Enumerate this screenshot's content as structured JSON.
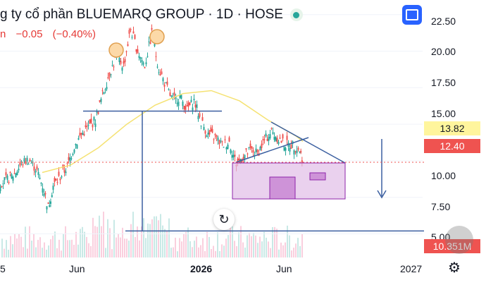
{
  "header": {
    "title": "g ty cổ phần BLUEMARQ GROUP · 1D · HOSE",
    "status_icon": "market-open-dot",
    "change_suffix": "n",
    "change_abs": "−0.05",
    "change_pct": "(−0.40%)"
  },
  "toolbar": {
    "fullscreen_icon": "fullscreen-icon"
  },
  "yaxis": {
    "ticks": [
      "22.50",
      "20.00",
      "17.50",
      "15.00",
      "10.00",
      "7.50",
      "5.00"
    ]
  },
  "price_tags": {
    "ma_value": "13.82",
    "last_price": "12.40",
    "volume": "10.351M"
  },
  "xaxis": {
    "ticks": [
      "5",
      "Jun",
      "2026",
      "Jun",
      "2027"
    ]
  },
  "controls": {
    "reset_icon": "↻",
    "settings_icon": "⚙"
  },
  "colors": {
    "up": "#26a69a",
    "down": "#ef5350",
    "ma_line": "#f5e273",
    "drawing": "#3b5fa0",
    "box_fill": "#e1bee7",
    "box_stroke": "#8e24aa"
  },
  "chart_data": {
    "type": "candlestick",
    "title": "",
    "ylim": [
      4,
      23.5
    ],
    "y_ticks": [
      7.5,
      10,
      12.5,
      15,
      17.5,
      20,
      22.5
    ],
    "x_labels": [
      "5",
      "Jun",
      "2026",
      "Jun",
      "2027"
    ],
    "series": [
      {
        "kind": "price",
        "points": [
          [
            0,
            11.0
          ],
          [
            10,
            11.2
          ],
          [
            20,
            11.6
          ],
          [
            30,
            12.3
          ],
          [
            40,
            12.6
          ],
          [
            50,
            12.0
          ],
          [
            60,
            10.8
          ],
          [
            68,
            9.3
          ],
          [
            75,
            10.8
          ],
          [
            85,
            11.4
          ],
          [
            95,
            12.1
          ],
          [
            105,
            13.5
          ],
          [
            115,
            14.3
          ],
          [
            125,
            14.8
          ],
          [
            135,
            15.3
          ],
          [
            145,
            17.0
          ],
          [
            155,
            18.5
          ],
          [
            165,
            19.6
          ],
          [
            175,
            19.0
          ],
          [
            185,
            21.5
          ],
          [
            195,
            20.0
          ],
          [
            205,
            19.0
          ],
          [
            215,
            21.2
          ],
          [
            225,
            18.8
          ],
          [
            235,
            17.6
          ],
          [
            245,
            16.6
          ],
          [
            255,
            16.9
          ],
          [
            265,
            16.0
          ],
          [
            275,
            16.6
          ],
          [
            285,
            15.2
          ],
          [
            295,
            14.3
          ],
          [
            305,
            14.1
          ],
          [
            315,
            13.6
          ],
          [
            325,
            13.8
          ],
          [
            335,
            12.3
          ],
          [
            345,
            12.8
          ],
          [
            355,
            13.2
          ],
          [
            365,
            13.0
          ],
          [
            375,
            13.9
          ],
          [
            385,
            14.5
          ],
          [
            395,
            14.0
          ],
          [
            405,
            13.6
          ],
          [
            415,
            13.6
          ],
          [
            425,
            13.2
          ],
          [
            430,
            12.4
          ]
        ]
      },
      {
        "kind": "moving_average",
        "points": [
          [
            60,
            11.7
          ],
          [
            100,
            12.2
          ],
          [
            140,
            13.4
          ],
          [
            180,
            15.0
          ],
          [
            220,
            16.3
          ],
          [
            260,
            17.1
          ],
          [
            300,
            17.3
          ],
          [
            340,
            16.6
          ],
          [
            380,
            15.3
          ],
          [
            420,
            14.2
          ],
          [
            430,
            13.82
          ]
        ]
      }
    ],
    "annotations": {
      "neckline": 15.9,
      "target_level": 7.7,
      "last_price": 12.4,
      "ma_value": 13.82,
      "volume_last": "10.351M"
    }
  }
}
